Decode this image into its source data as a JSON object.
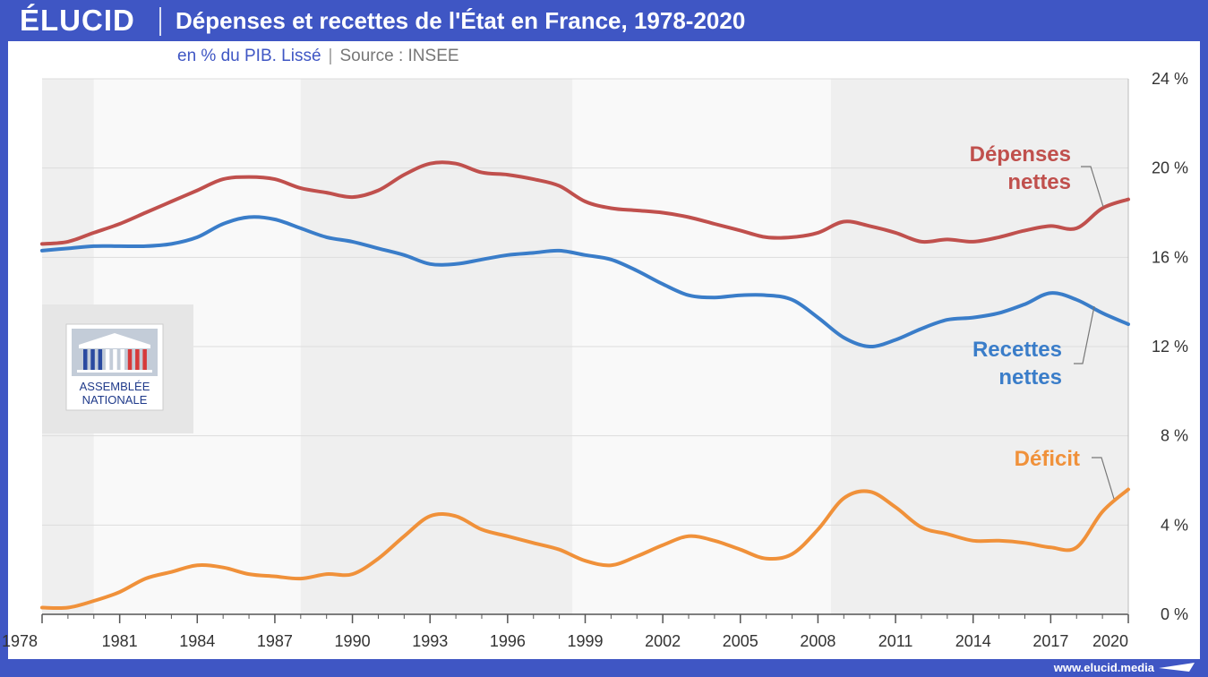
{
  "header": {
    "brand": "ÉLUCID",
    "title": "Dépenses et recettes de l'État en France, 1978-2020"
  },
  "subtitle": {
    "unit": "en % du PIB. Lissé",
    "source": "Source : INSEE"
  },
  "logo": {
    "line1": "ASSEMBLÉE",
    "line2": "NATIONALE"
  },
  "footer": {
    "url": "www.elucid.media"
  },
  "colors": {
    "depenses": "#c0504d",
    "recettes": "#3a7dc9",
    "deficit": "#f0913a",
    "brand": "#3f56c4"
  },
  "chart_data": {
    "type": "line",
    "title": "Dépenses et recettes de l'État en France, 1978-2020",
    "subtitle": "en % du PIB. Lissé",
    "xlim": [
      1978,
      2020
    ],
    "ylim": [
      0,
      24
    ],
    "x_ticks": [
      1978,
      1981,
      1984,
      1987,
      1990,
      1993,
      1996,
      1999,
      2002,
      2005,
      2008,
      2011,
      2014,
      2017,
      2020
    ],
    "y_ticks": [
      {
        "value": 0,
        "label": "0 %"
      },
      {
        "value": 4,
        "label": "4 %"
      },
      {
        "value": 8,
        "label": "8 %"
      },
      {
        "value": 12,
        "label": "12 %"
      },
      {
        "value": 16,
        "label": "16 %"
      },
      {
        "value": 20,
        "label": "20 %"
      },
      {
        "value": 24,
        "label": "24 %"
      }
    ],
    "shaded_periods": [
      [
        1978,
        1980
      ],
      [
        1988,
        1998.5
      ],
      [
        2008.5,
        2020
      ]
    ],
    "series": [
      {
        "key": "depenses",
        "name": "Dépenses nettes",
        "label_lines": [
          "Dépenses",
          "nettes"
        ],
        "x": [
          1978,
          1979,
          1980,
          1981,
          1982,
          1983,
          1984,
          1985,
          1986,
          1987,
          1988,
          1989,
          1990,
          1991,
          1992,
          1993,
          1994,
          1995,
          1996,
          1997,
          1998,
          1999,
          2000,
          2001,
          2002,
          2003,
          2004,
          2005,
          2006,
          2007,
          2008,
          2009,
          2010,
          2011,
          2012,
          2013,
          2014,
          2015,
          2016,
          2017,
          2018,
          2019,
          2020
        ],
        "values": [
          16.6,
          16.7,
          17.1,
          17.5,
          18.0,
          18.5,
          19.0,
          19.5,
          19.6,
          19.5,
          19.1,
          18.9,
          18.7,
          19.0,
          19.7,
          20.2,
          20.2,
          19.8,
          19.7,
          19.5,
          19.2,
          18.5,
          18.2,
          18.1,
          18.0,
          17.8,
          17.5,
          17.2,
          16.9,
          16.9,
          17.1,
          17.6,
          17.4,
          17.1,
          16.7,
          16.8,
          16.7,
          16.9,
          17.2,
          17.4,
          17.3,
          18.2,
          18.6
        ]
      },
      {
        "key": "recettes",
        "name": "Recettes nettes",
        "label_lines": [
          "Recettes",
          "nettes"
        ],
        "x": [
          1978,
          1979,
          1980,
          1981,
          1982,
          1983,
          1984,
          1985,
          1986,
          1987,
          1988,
          1989,
          1990,
          1991,
          1992,
          1993,
          1994,
          1995,
          1996,
          1997,
          1998,
          1999,
          2000,
          2001,
          2002,
          2003,
          2004,
          2005,
          2006,
          2007,
          2008,
          2009,
          2010,
          2011,
          2012,
          2013,
          2014,
          2015,
          2016,
          2017,
          2018,
          2019,
          2020
        ],
        "values": [
          16.3,
          16.4,
          16.5,
          16.5,
          16.5,
          16.6,
          16.9,
          17.5,
          17.8,
          17.7,
          17.3,
          16.9,
          16.7,
          16.4,
          16.1,
          15.7,
          15.7,
          15.9,
          16.1,
          16.2,
          16.3,
          16.1,
          15.9,
          15.4,
          14.8,
          14.3,
          14.2,
          14.3,
          14.3,
          14.1,
          13.3,
          12.4,
          12.0,
          12.3,
          12.8,
          13.2,
          13.3,
          13.5,
          13.9,
          14.4,
          14.1,
          13.5,
          13.0
        ]
      },
      {
        "key": "deficit",
        "name": "Déficit",
        "label_lines": [
          "Déficit"
        ],
        "x": [
          1978,
          1979,
          1980,
          1981,
          1982,
          1983,
          1984,
          1985,
          1986,
          1987,
          1988,
          1989,
          1990,
          1991,
          1992,
          1993,
          1994,
          1995,
          1996,
          1997,
          1998,
          1999,
          2000,
          2001,
          2002,
          2003,
          2004,
          2005,
          2006,
          2007,
          2008,
          2009,
          2010,
          2011,
          2012,
          2013,
          2014,
          2015,
          2016,
          2017,
          2018,
          2019,
          2020
        ],
        "values": [
          0.3,
          0.3,
          0.6,
          1.0,
          1.6,
          1.9,
          2.2,
          2.1,
          1.8,
          1.7,
          1.6,
          1.8,
          1.8,
          2.5,
          3.5,
          4.4,
          4.4,
          3.8,
          3.5,
          3.2,
          2.9,
          2.4,
          2.2,
          2.6,
          3.1,
          3.5,
          3.3,
          2.9,
          2.5,
          2.7,
          3.8,
          5.2,
          5.5,
          4.8,
          3.9,
          3.6,
          3.3,
          3.3,
          3.2,
          3.0,
          3.0,
          4.6,
          5.6
        ]
      }
    ]
  }
}
